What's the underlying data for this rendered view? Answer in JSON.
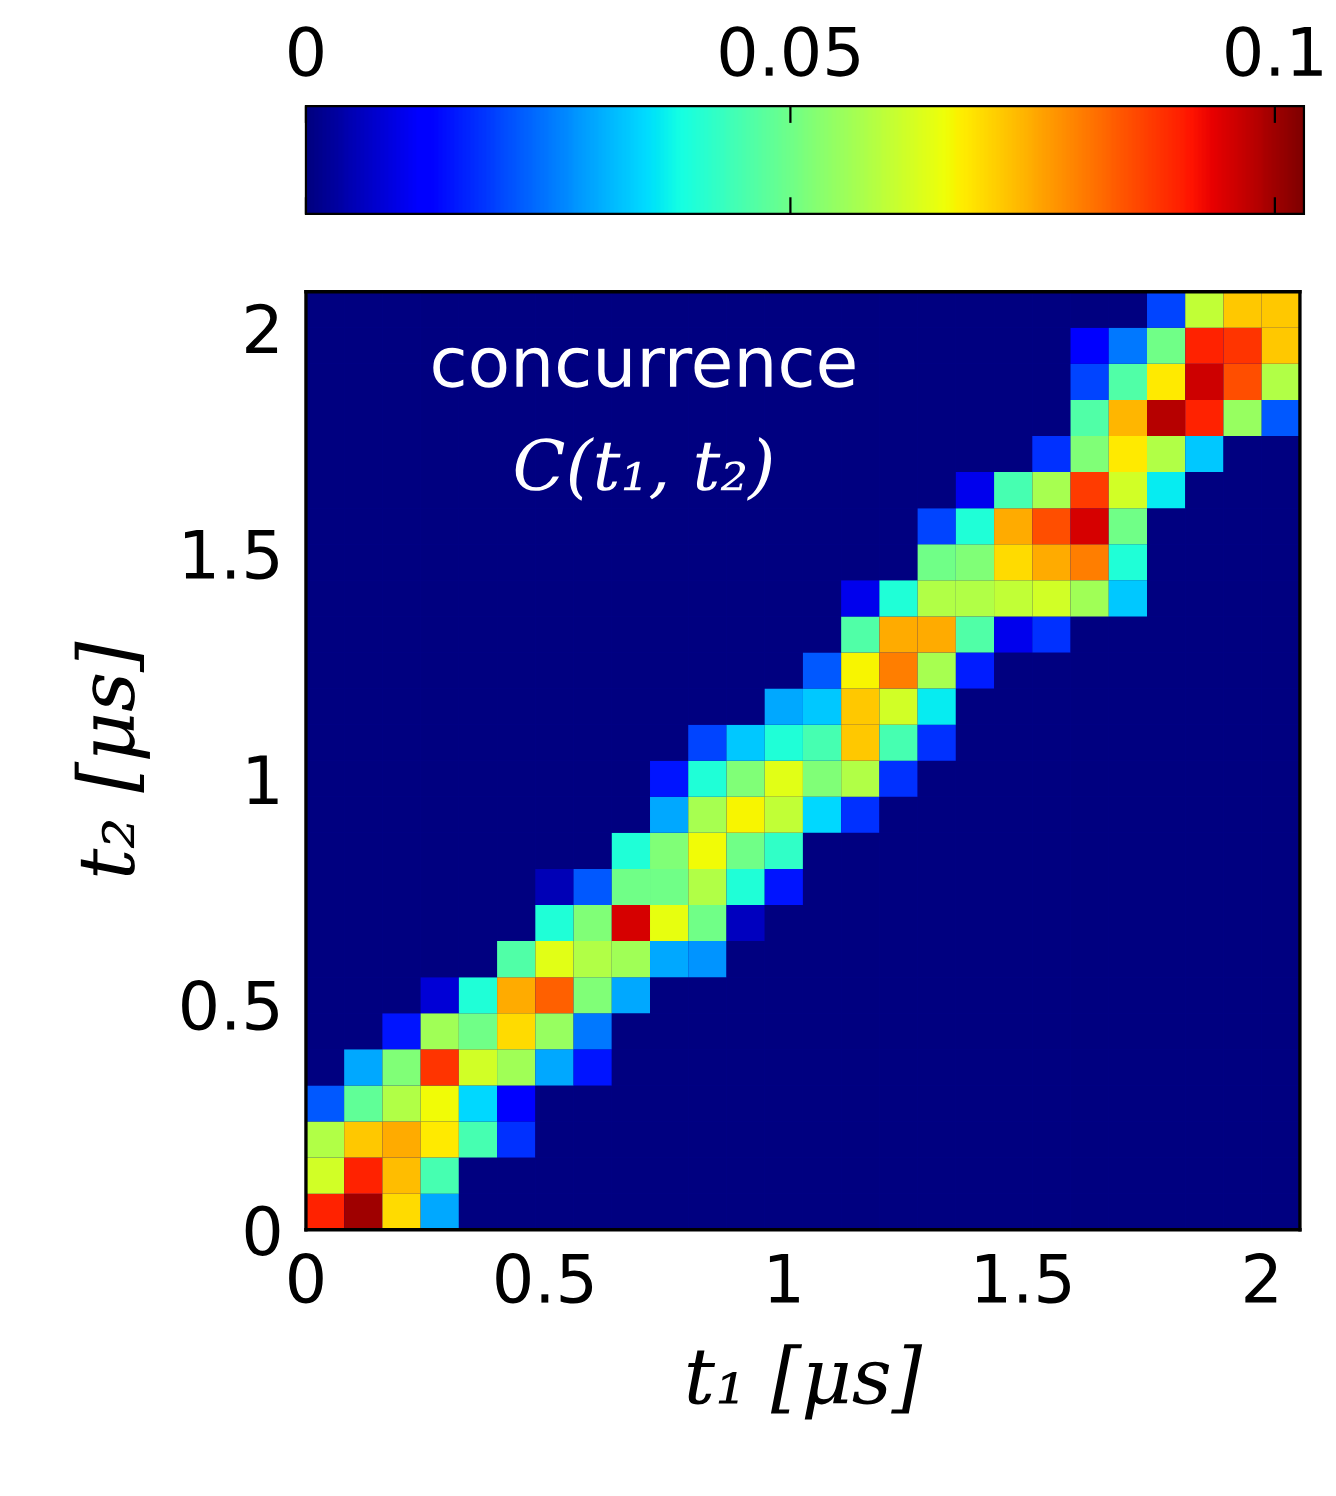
{
  "chart_data": {
    "type": "heatmap",
    "xlabel": "t₁ [μs]",
    "ylabel": "t₂ [μs]",
    "annotations": [
      "concurrence",
      "C(t₁, t₂)"
    ],
    "xlim": [
      0,
      2.08
    ],
    "ylim": [
      0,
      2.08
    ],
    "xticks": [
      0,
      0.5,
      1,
      1.5,
      2
    ],
    "yticks": [
      0,
      0.5,
      1,
      1.5,
      2
    ],
    "clim": [
      0,
      0.103
    ],
    "cticks": [
      0,
      0.05,
      0.1
    ],
    "cells": [
      [
        0,
        0,
        0,
        0,
        0,
        0,
        0,
        0,
        0,
        0,
        0,
        0,
        0,
        0,
        0,
        0,
        0,
        0,
        0,
        0,
        0,
        0,
        0.02,
        0.06,
        0.072,
        0.072
      ],
      [
        0,
        0,
        0,
        0,
        0,
        0,
        0,
        0,
        0,
        0,
        0,
        0,
        0,
        0,
        0,
        0,
        0,
        0,
        0,
        0,
        0.012,
        0.025,
        0.05,
        0.09,
        0.088,
        0.072
      ],
      [
        0,
        0,
        0,
        0,
        0,
        0,
        0,
        0,
        0,
        0,
        0,
        0,
        0,
        0,
        0,
        0,
        0,
        0,
        0,
        0,
        0.02,
        0.046,
        0.068,
        0.096,
        0.085,
        0.058
      ],
      [
        0,
        0,
        0,
        0,
        0,
        0,
        0,
        0,
        0,
        0,
        0,
        0,
        0,
        0,
        0,
        0,
        0,
        0,
        0,
        0,
        0.046,
        0.074,
        0.098,
        0.09,
        0.055,
        0.022
      ],
      [
        0,
        0,
        0,
        0,
        0,
        0,
        0,
        0,
        0,
        0,
        0,
        0,
        0,
        0,
        0,
        0,
        0,
        0,
        0,
        0.018,
        0.052,
        0.068,
        0.058,
        0.033,
        0,
        0
      ],
      [
        0,
        0,
        0,
        0,
        0,
        0,
        0,
        0,
        0,
        0,
        0,
        0,
        0,
        0,
        0,
        0,
        0,
        0.01,
        0.045,
        0.057,
        0.087,
        0.062,
        0.037,
        0,
        0,
        0
      ],
      [
        0,
        0,
        0,
        0,
        0,
        0,
        0,
        0,
        0,
        0,
        0,
        0,
        0,
        0,
        0,
        0,
        0.02,
        0.04,
        0.075,
        0.085,
        0.095,
        0.05,
        0,
        0,
        0,
        0
      ],
      [
        0,
        0,
        0,
        0,
        0,
        0,
        0,
        0,
        0,
        0,
        0,
        0,
        0,
        0,
        0,
        0,
        0.05,
        0.052,
        0.07,
        0.075,
        0.08,
        0.04,
        0,
        0,
        0,
        0
      ],
      [
        0,
        0,
        0,
        0,
        0,
        0,
        0,
        0,
        0,
        0,
        0,
        0,
        0,
        0,
        0.01,
        0.04,
        0.058,
        0.058,
        0.06,
        0.062,
        0.056,
        0.033,
        0,
        0,
        0,
        0
      ],
      [
        0,
        0,
        0,
        0,
        0,
        0,
        0,
        0,
        0,
        0,
        0,
        0,
        0,
        0,
        0.046,
        0.075,
        0.075,
        0.046,
        0.01,
        0.018,
        0,
        0,
        0,
        0,
        0,
        0
      ],
      [
        0,
        0,
        0,
        0,
        0,
        0,
        0,
        0,
        0,
        0,
        0,
        0,
        0,
        0.022,
        0.067,
        0.08,
        0.057,
        0.016,
        0,
        0,
        0,
        0,
        0,
        0,
        0,
        0
      ],
      [
        0,
        0,
        0,
        0,
        0,
        0,
        0,
        0,
        0,
        0,
        0,
        0,
        0.03,
        0.033,
        0.072,
        0.062,
        0.037,
        0,
        0,
        0,
        0,
        0,
        0,
        0,
        0,
        0
      ],
      [
        0,
        0,
        0,
        0,
        0,
        0,
        0,
        0,
        0,
        0,
        0.02,
        0.033,
        0.04,
        0.045,
        0.072,
        0.045,
        0.018,
        0,
        0,
        0,
        0,
        0,
        0,
        0,
        0,
        0
      ],
      [
        0,
        0,
        0,
        0,
        0,
        0,
        0,
        0,
        0,
        0.015,
        0.04,
        0.052,
        0.064,
        0.052,
        0.058,
        0.018,
        0,
        0,
        0,
        0,
        0,
        0,
        0,
        0,
        0,
        0
      ],
      [
        0,
        0,
        0,
        0,
        0,
        0,
        0,
        0,
        0,
        0.03,
        0.057,
        0.067,
        0.06,
        0.035,
        0.018,
        0,
        0,
        0,
        0,
        0,
        0,
        0,
        0,
        0,
        0,
        0
      ],
      [
        0,
        0,
        0,
        0,
        0,
        0,
        0,
        0,
        0.04,
        0.052,
        0.066,
        0.05,
        0.042,
        0,
        0,
        0,
        0,
        0,
        0,
        0,
        0,
        0,
        0,
        0,
        0,
        0
      ],
      [
        0,
        0,
        0,
        0,
        0,
        0,
        0.005,
        0.022,
        0.05,
        0.05,
        0.058,
        0.04,
        0.015,
        0,
        0,
        0,
        0,
        0,
        0,
        0,
        0,
        0,
        0,
        0,
        0,
        0
      ],
      [
        0,
        0,
        0,
        0,
        0,
        0,
        0.04,
        0.052,
        0.095,
        0.065,
        0.05,
        0.006,
        0,
        0,
        0,
        0,
        0,
        0,
        0,
        0,
        0,
        0,
        0,
        0,
        0,
        0
      ],
      [
        0,
        0,
        0,
        0,
        0,
        0.046,
        0.064,
        0.058,
        0.056,
        0.03,
        0.028,
        0,
        0,
        0,
        0,
        0,
        0,
        0,
        0,
        0,
        0,
        0,
        0,
        0,
        0,
        0
      ],
      [
        0,
        0,
        0,
        0.008,
        0.04,
        0.075,
        0.083,
        0.052,
        0.03,
        0,
        0,
        0,
        0,
        0,
        0,
        0,
        0,
        0,
        0,
        0,
        0,
        0,
        0,
        0,
        0,
        0
      ],
      [
        0,
        0,
        0.015,
        0.056,
        0.05,
        0.07,
        0.055,
        0.025,
        0,
        0,
        0,
        0,
        0,
        0,
        0,
        0,
        0,
        0,
        0,
        0,
        0,
        0,
        0,
        0,
        0,
        0
      ],
      [
        0,
        0.03,
        0.052,
        0.088,
        0.062,
        0.056,
        0.03,
        0.015,
        0,
        0,
        0,
        0,
        0,
        0,
        0,
        0,
        0,
        0,
        0,
        0,
        0,
        0,
        0,
        0,
        0,
        0
      ],
      [
        0.022,
        0.048,
        0.058,
        0.066,
        0.035,
        0.012,
        0,
        0,
        0,
        0,
        0,
        0,
        0,
        0,
        0,
        0,
        0,
        0,
        0,
        0,
        0,
        0,
        0,
        0,
        0,
        0
      ],
      [
        0.058,
        0.072,
        0.075,
        0.068,
        0.045,
        0.018,
        0,
        0,
        0,
        0,
        0,
        0,
        0,
        0,
        0,
        0,
        0,
        0,
        0,
        0,
        0,
        0,
        0,
        0,
        0,
        0
      ],
      [
        0.062,
        0.09,
        0.073,
        0.045,
        0,
        0,
        0,
        0,
        0,
        0,
        0,
        0,
        0,
        0,
        0,
        0,
        0,
        0,
        0,
        0,
        0,
        0,
        0,
        0,
        0,
        0
      ],
      [
        0.09,
        0.1,
        0.07,
        0.03,
        0,
        0,
        0,
        0,
        0,
        0,
        0,
        0,
        0,
        0,
        0,
        0,
        0,
        0,
        0,
        0,
        0,
        0,
        0,
        0,
        0,
        0
      ]
    ]
  }
}
